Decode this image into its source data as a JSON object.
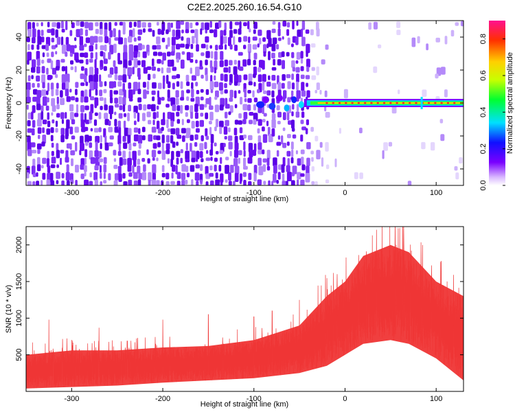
{
  "title": "C2E2.2025.260.16.54.G10",
  "colors": {
    "snr_series": "#ef3535",
    "spectrum_point": "#6a0df0",
    "ridge_core": "#ff2a2a",
    "frame": "#000000"
  },
  "chart_data": [
    {
      "type": "heatmap",
      "name": "spectrogram",
      "xlabel": "Height of straight line (km)",
      "ylabel": "Frequency (Hz)",
      "xlim": [
        -350,
        130
      ],
      "ylim": [
        -50,
        50
      ],
      "xticks": [
        -300,
        -200,
        -100,
        0,
        100
      ],
      "yticks": [
        -40,
        -20,
        0,
        20,
        40
      ],
      "grid": false,
      "noise_region_x": [
        -350,
        -40
      ],
      "signal_ridge": {
        "frequency": 0,
        "x_start": -95,
        "x_end": 130,
        "peak_amplitude": 0.9
      },
      "colorbar": {
        "label": "Normalized spectral amplitude",
        "range": [
          0.0,
          0.9
        ],
        "ticks": [
          "0.0",
          "0.2",
          "0.4",
          "0.6",
          "0.8"
        ]
      }
    },
    {
      "type": "line",
      "name": "snr",
      "xlabel": "Height of straight line (km)",
      "ylabel": "SNR (10 * v/v)",
      "xlim": [
        -350,
        130
      ],
      "ylim": [
        0,
        2250
      ],
      "xticks": [
        -300,
        -200,
        -100,
        0,
        100
      ],
      "yticks": [
        500,
        1000,
        1500,
        2000
      ],
      "grid": false,
      "series": [
        {
          "name": "SNR",
          "envelope_x": [
            -350,
            -300,
            -250,
            -200,
            -150,
            -100,
            -50,
            -20,
            0,
            20,
            50,
            70,
            100,
            130
          ],
          "lower": [
            40,
            60,
            80,
            120,
            150,
            180,
            250,
            350,
            500,
            650,
            700,
            650,
            450,
            150
          ],
          "upper": [
            500,
            560,
            560,
            600,
            620,
            700,
            900,
            1300,
            1500,
            1850,
            2000,
            1900,
            1500,
            1300
          ],
          "spikes": [
            {
              "x": -325,
              "y": 980
            },
            {
              "x": -270,
              "y": 870
            },
            {
              "x": -200,
              "y": 980
            },
            {
              "x": -150,
              "y": 1050
            },
            {
              "x": -100,
              "y": 1020
            },
            {
              "x": -80,
              "y": 1100
            },
            {
              "x": -50,
              "y": 1250
            },
            {
              "x": 30,
              "y": 2130
            },
            {
              "x": 60,
              "y": 2230
            },
            {
              "x": 85,
              "y": 2000
            }
          ]
        }
      ]
    }
  ]
}
